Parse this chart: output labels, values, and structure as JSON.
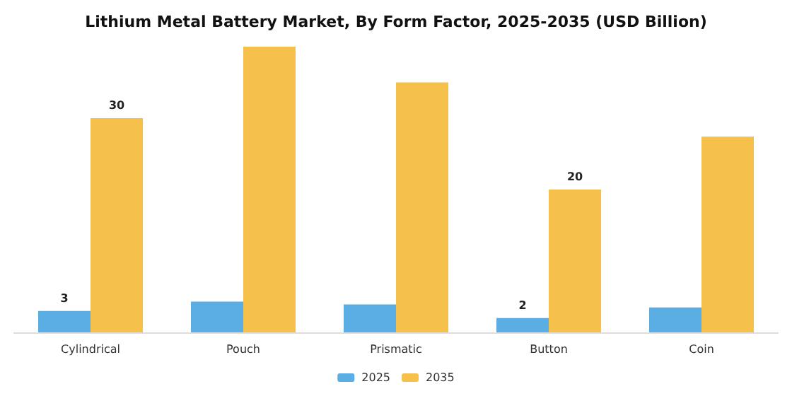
{
  "chart_data": {
    "type": "bar",
    "title": "Lithium Metal Battery Market, By Form Factor, 2025-2035 (USD Billion)",
    "categories": [
      "Cylindrical",
      "Pouch",
      "Prismatic",
      "Button",
      "Coin"
    ],
    "series": [
      {
        "name": "2025",
        "color": "#5baee3",
        "values": [
          3,
          4.3,
          3.9,
          2,
          3.5
        ],
        "value_labels": [
          "3",
          null,
          null,
          "2",
          null
        ]
      },
      {
        "name": "2035",
        "color": "#f6c14a",
        "values": [
          30,
          40,
          35,
          20,
          27.4
        ],
        "value_labels": [
          "30",
          null,
          null,
          "20",
          null
        ]
      }
    ],
    "tick_labels": "x",
    "legend": "bottom"
  }
}
